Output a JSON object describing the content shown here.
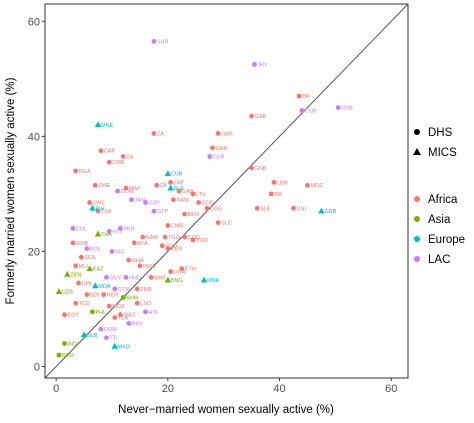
{
  "chart_data": {
    "type": "scatter",
    "xlabel": "Never−married women sexually active (%)",
    "ylabel": "Formerly married women sexually active (%)",
    "xlim": [
      -2,
      63
    ],
    "ylim": [
      -2,
      63
    ],
    "x_ticks": [
      0,
      20,
      40,
      60
    ],
    "y_ticks": [
      0,
      20,
      40,
      60
    ],
    "grid": false,
    "reference_line": "y = x",
    "legend_position": "right",
    "shape_legend": [
      {
        "label": "DHS",
        "shape": "circle"
      },
      {
        "label": "MICS",
        "shape": "triangle"
      }
    ],
    "color_legend": [
      {
        "label": "Africa",
        "color": "#F8766D"
      },
      {
        "label": "Asia",
        "color": "#7CAE00"
      },
      {
        "label": "Europe",
        "color": "#00BFC4"
      },
      {
        "label": "LAC",
        "color": "#C77CFF"
      }
    ],
    "points": [
      {
        "x": 17.5,
        "y": 56.5,
        "label": "SUR",
        "region": "LAC",
        "survey": "DHS"
      },
      {
        "x": 35.5,
        "y": 52.5,
        "label": "JRY",
        "region": "LAC",
        "survey": "DHS"
      },
      {
        "x": 43.5,
        "y": 47,
        "label": "BR",
        "region": "Africa",
        "survey": "DHS"
      },
      {
        "x": 50.5,
        "y": 45,
        "label": "CUB",
        "region": "LAC",
        "survey": "DHS"
      },
      {
        "x": 44,
        "y": 44.5,
        "label": "CUB",
        "region": "LAC",
        "survey": "DHS"
      },
      {
        "x": 35,
        "y": 43.5,
        "label": "GAB",
        "region": "Africa",
        "survey": "DHS"
      },
      {
        "x": 7.5,
        "y": 42,
        "label": "MNE",
        "region": "Europe",
        "survey": "MICS"
      },
      {
        "x": 17.5,
        "y": 40.5,
        "label": "ZA",
        "region": "Africa",
        "survey": "DHS"
      },
      {
        "x": 29,
        "y": 40.5,
        "label": "GAB",
        "region": "Africa",
        "survey": "DHS"
      },
      {
        "x": 28,
        "y": 38,
        "label": "GAB",
        "region": "Africa",
        "survey": "DHS"
      },
      {
        "x": 27.5,
        "y": 36.5,
        "label": "CUR",
        "region": "LAC",
        "survey": "DHS"
      },
      {
        "x": 8,
        "y": 37.5,
        "label": "CAF",
        "region": "Africa",
        "survey": "DHS"
      },
      {
        "x": 9.5,
        "y": 35.5,
        "label": "CMR",
        "region": "Africa",
        "survey": "DHS"
      },
      {
        "x": 12,
        "y": 36.5,
        "label": "ZA",
        "region": "Africa",
        "survey": "DHS"
      },
      {
        "x": 3.5,
        "y": 34,
        "label": "NGA",
        "region": "Africa",
        "survey": "DHS"
      },
      {
        "x": 35,
        "y": 34.5,
        "label": "GNB",
        "region": "Africa",
        "survey": "DHS"
      },
      {
        "x": 7,
        "y": 31.5,
        "label": "ZWE",
        "region": "Africa",
        "survey": "DHS"
      },
      {
        "x": 12.5,
        "y": 31,
        "label": "MAF",
        "region": "Africa",
        "survey": "DHS"
      },
      {
        "x": 18,
        "y": 31.5,
        "label": "ZA",
        "region": "Africa",
        "survey": "DHS"
      },
      {
        "x": 20,
        "y": 33.5,
        "label": "CUB",
        "region": "Europe",
        "survey": "MICS"
      },
      {
        "x": 20.5,
        "y": 32,
        "label": "ZAF",
        "region": "Africa",
        "survey": "DHS"
      },
      {
        "x": 20.5,
        "y": 31,
        "label": "BLE",
        "region": "Europe",
        "survey": "MICS"
      },
      {
        "x": 22,
        "y": 30.5,
        "label": "GAB",
        "region": "Africa",
        "survey": "DHS"
      },
      {
        "x": 39,
        "y": 32,
        "label": "LBR",
        "region": "Africa",
        "survey": "DHS"
      },
      {
        "x": 38.5,
        "y": 30,
        "label": "BR",
        "region": "Africa",
        "survey": "DHS"
      },
      {
        "x": 45,
        "y": 31.5,
        "label": "MOZ",
        "region": "Africa",
        "survey": "DHS"
      },
      {
        "x": 13.5,
        "y": 29,
        "label": "JAN",
        "region": "LAC",
        "survey": "DHS"
      },
      {
        "x": 16,
        "y": 28.5,
        "label": "GTP",
        "region": "LAC",
        "survey": "DHS"
      },
      {
        "x": 11,
        "y": 30.5,
        "label": "DOM",
        "region": "LAC",
        "survey": "DHS"
      },
      {
        "x": 6,
        "y": 28.5,
        "label": "ZWE",
        "region": "Africa",
        "survey": "DHS"
      },
      {
        "x": 21,
        "y": 29,
        "label": "NAM",
        "region": "Africa",
        "survey": "DHS"
      },
      {
        "x": 24.5,
        "y": 30,
        "label": "LTV",
        "region": "Africa",
        "survey": "DHS"
      },
      {
        "x": 25.5,
        "y": 28.5,
        "label": "COG",
        "region": "Africa",
        "survey": "DHS"
      },
      {
        "x": 27,
        "y": 27.5,
        "label": "COG",
        "region": "Africa",
        "survey": "DHS"
      },
      {
        "x": 7.5,
        "y": 27,
        "label": "TZA",
        "region": "Africa",
        "survey": "DHS"
      },
      {
        "x": 6.5,
        "y": 27.5,
        "label": "BIH",
        "region": "Europe",
        "survey": "MICS"
      },
      {
        "x": 17.5,
        "y": 27,
        "label": "GTP",
        "region": "LAC",
        "survey": "DHS"
      },
      {
        "x": 23,
        "y": 26.5,
        "label": "BEN",
        "region": "Africa",
        "survey": "DHS"
      },
      {
        "x": 36,
        "y": 27.5,
        "label": "SLE",
        "region": "Africa",
        "survey": "DHS"
      },
      {
        "x": 42.5,
        "y": 27.5,
        "label": "DNI",
        "region": "Africa",
        "survey": "DHS"
      },
      {
        "x": 47.5,
        "y": 27,
        "label": "GRB",
        "region": "Europe",
        "survey": "MICS"
      },
      {
        "x": 29,
        "y": 25,
        "label": "SLE",
        "region": "Africa",
        "survey": "DHS"
      },
      {
        "x": 20,
        "y": 24.5,
        "label": "CMR",
        "region": "Africa",
        "survey": "DHS"
      },
      {
        "x": 3,
        "y": 24,
        "label": "COL",
        "region": "LAC",
        "survey": "DHS"
      },
      {
        "x": 9.5,
        "y": 23.5,
        "label": "HTI",
        "region": "LAC",
        "survey": "DHS"
      },
      {
        "x": 11.5,
        "y": 24,
        "label": "PER",
        "region": "LAC",
        "survey": "DHS"
      },
      {
        "x": 7.5,
        "y": 23,
        "label": "THA",
        "region": "Asia",
        "survey": "MICS"
      },
      {
        "x": 15.5,
        "y": 22.5,
        "label": "NAM",
        "region": "Africa",
        "survey": "DHS"
      },
      {
        "x": 19.5,
        "y": 22.5,
        "label": "TGO",
        "region": "Africa",
        "survey": "DHS"
      },
      {
        "x": 3,
        "y": 21.5,
        "label": "GMB",
        "region": "Africa",
        "survey": "DHS"
      },
      {
        "x": 14,
        "y": 21.5,
        "label": "BFA",
        "region": "Africa",
        "survey": "DHS"
      },
      {
        "x": 19,
        "y": 21,
        "label": "COD",
        "region": "Africa",
        "survey": "DHS"
      },
      {
        "x": 23,
        "y": 22.5,
        "label": "COD",
        "region": "Africa",
        "survey": "DHS"
      },
      {
        "x": 20,
        "y": 20.5,
        "label": "KEN",
        "region": "Africa",
        "survey": "DHS"
      },
      {
        "x": 24.5,
        "y": 22,
        "label": "TGO",
        "region": "Africa",
        "survey": "DHS"
      },
      {
        "x": 5.5,
        "y": 20.5,
        "label": "BOL",
        "region": "LAC",
        "survey": "DHS"
      },
      {
        "x": 10,
        "y": 20,
        "label": "NIC",
        "region": "LAC",
        "survey": "DHS"
      },
      {
        "x": 4.5,
        "y": 19,
        "label": "SEN",
        "region": "Africa",
        "survey": "DHS"
      },
      {
        "x": 13,
        "y": 18.5,
        "label": "GHA",
        "region": "Africa",
        "survey": "DHS"
      },
      {
        "x": 3.5,
        "y": 17.5,
        "label": "MLI",
        "region": "Africa",
        "survey": "DHS"
      },
      {
        "x": 6,
        "y": 17,
        "label": "KAZ",
        "region": "Asia",
        "survey": "MICS"
      },
      {
        "x": 15,
        "y": 17.5,
        "label": "RWA",
        "region": "Africa",
        "survey": "DHS"
      },
      {
        "x": 20.5,
        "y": 16.5,
        "label": "UGA",
        "region": "Africa",
        "survey": "DHS"
      },
      {
        "x": 22.5,
        "y": 17,
        "label": "ETH",
        "region": "Africa",
        "survey": "DHS"
      },
      {
        "x": 2,
        "y": 16,
        "label": "ZEN",
        "region": "Asia",
        "survey": "MICS"
      },
      {
        "x": 9,
        "y": 15.5,
        "label": "GUY",
        "region": "LAC",
        "survey": "DHS"
      },
      {
        "x": 12.5,
        "y": 15.5,
        "label": "HND",
        "region": "LAC",
        "survey": "DHS"
      },
      {
        "x": 17,
        "y": 15.5,
        "label": "MWI",
        "region": "Africa",
        "survey": "DHS"
      },
      {
        "x": 20,
        "y": 15,
        "label": "BNG",
        "region": "Asia",
        "survey": "MICS"
      },
      {
        "x": 26.5,
        "y": 15,
        "label": "MNE",
        "region": "Europe",
        "survey": "MICS"
      },
      {
        "x": 4,
        "y": 14.5,
        "label": "GIN",
        "region": "Africa",
        "survey": "DHS"
      },
      {
        "x": 7,
        "y": 14,
        "label": "MDA",
        "region": "Europe",
        "survey": "MICS"
      },
      {
        "x": 10.5,
        "y": 13.5,
        "label": "GTM",
        "region": "LAC",
        "survey": "DHS"
      },
      {
        "x": 14.5,
        "y": 13.5,
        "label": "ZMB",
        "region": "Africa",
        "survey": "DHS"
      },
      {
        "x": 0.5,
        "y": 13,
        "label": "UZB",
        "region": "Asia",
        "survey": "MICS"
      },
      {
        "x": 5.5,
        "y": 12.5,
        "label": "BDI",
        "region": "Africa",
        "survey": "DHS"
      },
      {
        "x": 8.5,
        "y": 12.5,
        "label": "NER",
        "region": "Africa",
        "survey": "DHS"
      },
      {
        "x": 12,
        "y": 12,
        "label": "KHM",
        "region": "Asia",
        "survey": "DHS"
      },
      {
        "x": 3.5,
        "y": 11,
        "label": "TCD",
        "region": "Africa",
        "survey": "DHS"
      },
      {
        "x": 9.5,
        "y": 10.5,
        "label": "MOZ",
        "region": "Africa",
        "survey": "DHS"
      },
      {
        "x": 14.5,
        "y": 11,
        "label": "LSO",
        "region": "Africa",
        "survey": "DHS"
      },
      {
        "x": 1.5,
        "y": 9,
        "label": "EGY",
        "region": "Africa",
        "survey": "DHS"
      },
      {
        "x": 6.5,
        "y": 9.5,
        "label": "PHL",
        "region": "Asia",
        "survey": "DHS"
      },
      {
        "x": 11.5,
        "y": 9,
        "label": "SWZ",
        "region": "Africa",
        "survey": "DHS"
      },
      {
        "x": 16,
        "y": 9.5,
        "label": "HTI",
        "region": "LAC",
        "survey": "DHS"
      },
      {
        "x": 10.5,
        "y": 8.5,
        "label": "TZA",
        "region": "Africa",
        "survey": "DHS"
      },
      {
        "x": 13,
        "y": 7.5,
        "label": "PRY",
        "region": "LAC",
        "survey": "DHS"
      },
      {
        "x": 8,
        "y": 6.5,
        "label": "DOM",
        "region": "LAC",
        "survey": "DHS"
      },
      {
        "x": 5,
        "y": 5.5,
        "label": "SLB",
        "region": "Europe",
        "survey": "MICS"
      },
      {
        "x": 9,
        "y": 5,
        "label": "TTI",
        "region": "LAC",
        "survey": "DHS"
      },
      {
        "x": 10.5,
        "y": 3.5,
        "label": "MKD",
        "region": "Europe",
        "survey": "MICS"
      },
      {
        "x": 1.5,
        "y": 4,
        "label": "IND",
        "region": "Asia",
        "survey": "DHS"
      },
      {
        "x": 0.5,
        "y": 2,
        "label": "BGD",
        "region": "Asia",
        "survey": "DHS"
      }
    ]
  }
}
